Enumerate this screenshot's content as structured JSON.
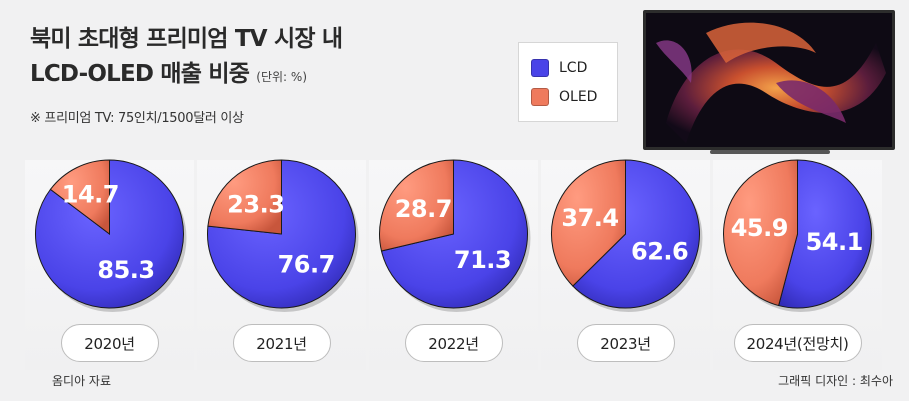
{
  "header": {
    "title_line1": "북미 초대형 프리미엄 TV 시장 내",
    "title_line2": "LCD-OLED 매출 비중",
    "unit": "(단위: %)",
    "note": "※ 프리미엄 TV: 75인치/1500달러 이상"
  },
  "legend": {
    "items": [
      {
        "label": "LCD",
        "color": "#4a43e8"
      },
      {
        "label": "OLED",
        "color": "#ef7a5d"
      }
    ]
  },
  "chart_data": {
    "type": "pie",
    "series_names": [
      "LCD",
      "OLED"
    ],
    "colors": {
      "LCD": "#4a43e8",
      "OLED": "#ef7a5d"
    },
    "pies": [
      {
        "label": "2020년",
        "LCD": 85.3,
        "OLED": 14.7
      },
      {
        "label": "2021년",
        "LCD": 76.7,
        "OLED": 23.3
      },
      {
        "label": "2022년",
        "LCD": 71.3,
        "OLED": 28.7
      },
      {
        "label": "2023년",
        "LCD": 62.6,
        "OLED": 37.4
      },
      {
        "label": "2024년(전망치)",
        "LCD": 54.1,
        "OLED": 45.9
      }
    ]
  },
  "footer": {
    "source": "옴디아 자료",
    "credit": "그래픽 디자인 : 최수아"
  }
}
